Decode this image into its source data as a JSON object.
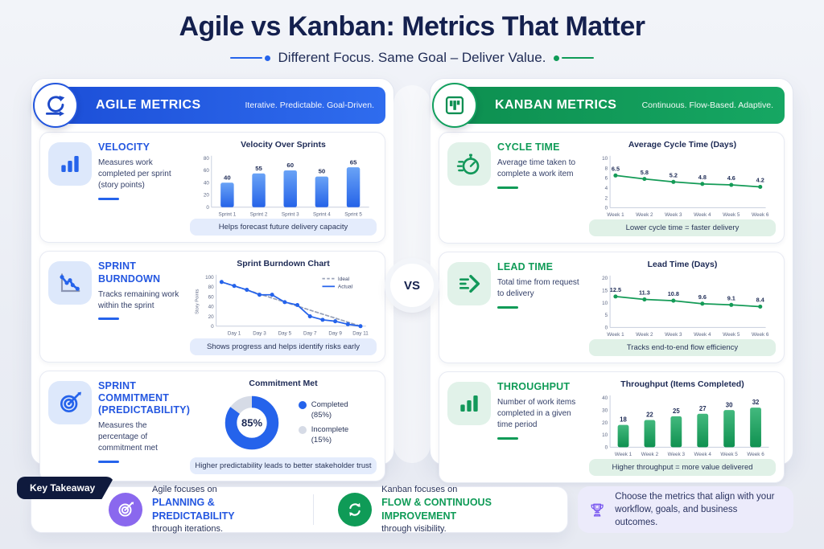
{
  "page": {
    "title": "Agile vs Kanban: Metrics That Matter",
    "subtitle": "Different Focus. Same Goal – Deliver Value.",
    "vs_label": "VS",
    "accent_blue": "#2563eb",
    "accent_green": "#0f9b57"
  },
  "agile": {
    "header": {
      "title": "AGILE METRICS",
      "tagline": "Iterative. Predictable. Goal-Driven."
    },
    "metrics": [
      {
        "title": "VELOCITY",
        "description": "Measures work completed per sprint (story points)",
        "icon": "bar-chart-icon",
        "footer": "Helps forecast future delivery capacity"
      },
      {
        "title": "SPRINT BURNDOWN",
        "description": "Tracks remaining work within the sprint",
        "icon": "burndown-line-icon",
        "footer": "Shows progress and helps identify risks early"
      },
      {
        "title": "SPRINT COMMITMENT (PREDICTABILITY)",
        "description": "Measures the percentage of commitment met",
        "icon": "target-icon",
        "footer": "Higher predictability leads to better stakeholder trust"
      }
    ]
  },
  "kanban": {
    "header": {
      "title": "KANBAN METRICS",
      "tagline": "Continuous. Flow-Based. Adaptive."
    },
    "metrics": [
      {
        "title": "CYCLE TIME",
        "description": "Average time taken to complete a work item",
        "icon": "stopwatch-icon",
        "footer": "Lower cycle time = faster delivery"
      },
      {
        "title": "LEAD TIME",
        "description": "Total time from request to delivery",
        "icon": "fast-forward-icon",
        "footer": "Tracks end-to-end flow efficiency"
      },
      {
        "title": "THROUGHPUT",
        "description": "Number of work items completed in a given time period",
        "icon": "bar-chart-icon",
        "footer": "Higher throughput = more value delivered"
      }
    ]
  },
  "takeaway": {
    "tag": "Key Takeaway",
    "items": [
      {
        "prefix": "Agile focuses on",
        "highlight": "PLANNING & PREDICTABILITY",
        "suffix": "through iterations.",
        "icon": "target-icon"
      },
      {
        "prefix": "Kanban focuses on",
        "highlight": "FLOW & CONTINUOUS IMPROVEMENT",
        "suffix": "through visibility.",
        "icon": "cycle-icon"
      }
    ],
    "note": {
      "icon": "trophy-icon",
      "text": "Choose the metrics that align with your workflow, goals, and business outcomes."
    }
  },
  "chart_data": [
    {
      "id": "velocity",
      "type": "bar",
      "title": "Velocity Over Sprints",
      "categories": [
        "Sprint 1",
        "Sprint 2",
        "Sprint 3",
        "Sprint 4",
        "Sprint 5"
      ],
      "values": [
        40,
        55,
        60,
        50,
        65
      ],
      "ylim": [
        0,
        80
      ],
      "yticks": [
        0,
        20,
        40,
        60,
        80
      ],
      "color_top": "#6aa3f6",
      "color_bottom": "#2563e8"
    },
    {
      "id": "burndown",
      "type": "line",
      "title": "Sprint Burndown Chart",
      "ylabel": "Story Points",
      "x_count": 12,
      "categories": [
        "Day 1",
        "Day 3",
        "Day 5",
        "Day 7",
        "Day 9",
        "Day 11"
      ],
      "tick_positions": [
        1,
        3,
        5,
        7,
        9,
        11
      ],
      "ylim": [
        0,
        100
      ],
      "yticks": [
        0,
        20,
        40,
        60,
        80,
        100
      ],
      "legend": true,
      "series": [
        {
          "name": "Ideal",
          "color": "#99a2b8",
          "style": "dashed",
          "values": [
            90,
            81.8,
            73.6,
            65.5,
            57.3,
            49.1,
            40.9,
            32.7,
            24.5,
            16.4,
            8.2,
            0
          ]
        },
        {
          "name": "Actual",
          "color": "#2563eb",
          "style": "solid",
          "dots": true,
          "values": [
            90,
            82,
            74,
            64,
            64,
            49,
            43,
            20,
            13,
            10,
            4,
            0
          ]
        }
      ]
    },
    {
      "id": "commitment",
      "type": "pie",
      "title": "Commitment Met",
      "center_label": "85%",
      "slices": [
        {
          "name": "Completed",
          "pct_label": "(85%)",
          "value": 85,
          "color": "#2563eb"
        },
        {
          "name": "Incomplete",
          "pct_label": "(15%)",
          "value": 15,
          "color": "#d6dbe6"
        }
      ]
    },
    {
      "id": "cycle_time",
      "type": "line",
      "title": "Average Cycle Time (Days)",
      "categories": [
        "Week 1",
        "Week 2",
        "Week 3",
        "Week 4",
        "Week 5",
        "Week 6"
      ],
      "ylim": [
        0,
        10
      ],
      "yticks": [
        0,
        2,
        4,
        6,
        8,
        10
      ],
      "series": [
        {
          "name": "Cycle Time",
          "color": "#149b57",
          "style": "solid",
          "dots": true,
          "point_labels": true,
          "values": [
            6.5,
            5.8,
            5.2,
            4.8,
            4.6,
            4.2
          ]
        }
      ]
    },
    {
      "id": "lead_time",
      "type": "line",
      "title": "Lead Time (Days)",
      "categories": [
        "Week 1",
        "Week 2",
        "Week 3",
        "Week 4",
        "Week 5",
        "Week 6"
      ],
      "ylim": [
        0,
        20
      ],
      "yticks": [
        0,
        5,
        10,
        15,
        20
      ],
      "series": [
        {
          "name": "Lead Time",
          "color": "#149b57",
          "style": "solid",
          "dots": true,
          "point_labels": true,
          "values": [
            12.5,
            11.3,
            10.8,
            9.6,
            9.1,
            8.4
          ]
        }
      ]
    },
    {
      "id": "throughput",
      "type": "bar",
      "title": "Throughput (Items Completed)",
      "categories": [
        "Week 1",
        "Week 2",
        "Week 3",
        "Week 4",
        "Week 5",
        "Week 6"
      ],
      "values": [
        18,
        22,
        25,
        27,
        30,
        32
      ],
      "ylim": [
        0,
        40
      ],
      "yticks": [
        0,
        10,
        20,
        30,
        40
      ],
      "color_top": "#43b97e",
      "color_bottom": "#0f9150"
    }
  ]
}
